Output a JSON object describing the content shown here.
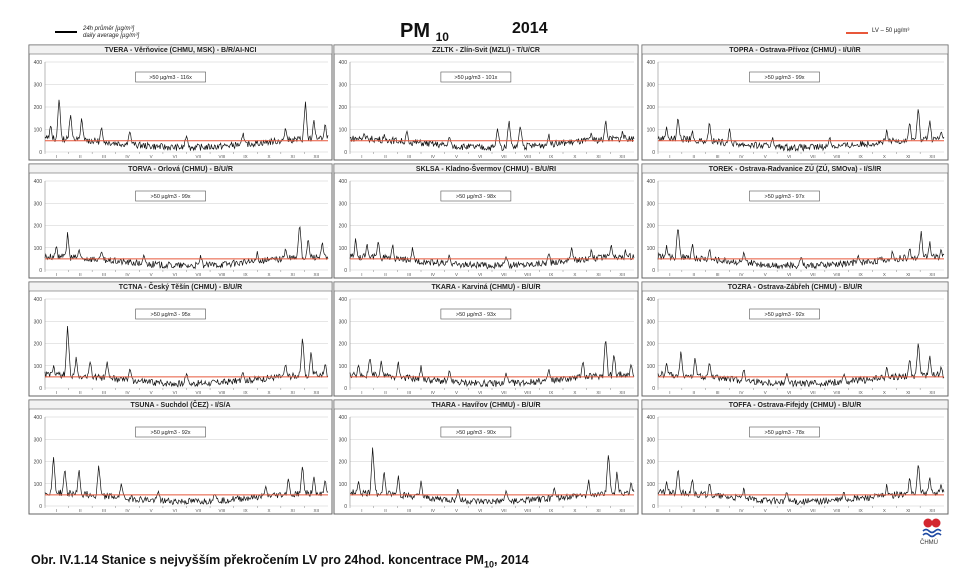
{
  "header": {
    "legend_left_line1": "24h průměr [µg/m³]",
    "legend_left_line2": "daily average [µg/m³]",
    "title_main": "PM",
    "title_sub": "10",
    "year": "2014",
    "legend_right": "LV – 50 µg/m³"
  },
  "caption": {
    "prefix": "Obr. IV.1.14  Stanice s nejvyšším překročením LV pro 24hod. koncentrace PM",
    "sub": "10",
    "suffix": ", 2014"
  },
  "logo": {
    "label": "ČHMÚ"
  },
  "colors": {
    "series": "#111111",
    "limit": "#e8573a",
    "frame": "#666666",
    "grid": "#cccccc"
  },
  "chart_data": [
    {
      "type": "line",
      "title": "TVERA - Věrňovice (CHMU, MSK) - B/R/AI-NCI",
      "annotation": ">50 µg/m3 - 116x",
      "ylim": [
        0,
        400
      ],
      "yticks": [
        "0",
        "100",
        "200",
        "300",
        "400"
      ],
      "xticks": [
        "I",
        "II",
        "III",
        "IV",
        "V",
        "VI",
        "VII",
        "VIII",
        "IX",
        "X",
        "XI",
        "XII"
      ],
      "limit": 50,
      "peaks": [
        [
          0.02,
          120
        ],
        [
          0.05,
          235
        ],
        [
          0.09,
          170
        ],
        [
          0.13,
          150
        ],
        [
          0.2,
          110
        ],
        [
          0.3,
          90
        ],
        [
          0.5,
          70
        ],
        [
          0.7,
          80
        ],
        [
          0.85,
          110
        ],
        [
          0.92,
          220
        ],
        [
          0.95,
          140
        ],
        [
          0.99,
          120
        ]
      ]
    },
    {
      "type": "line",
      "title": "ZZLTK - Zlín-Svit (MZLI) - T/U/CR",
      "annotation": ">50 µg/m3 - 101x",
      "ylim": [
        0,
        400
      ],
      "yticks": [
        "0",
        "100",
        "200",
        "300",
        "400"
      ],
      "xticks": [
        "I",
        "II",
        "III",
        "IV",
        "V",
        "VI",
        "VII",
        "VIII",
        "IX",
        "X",
        "XI",
        "XII"
      ],
      "limit": 50,
      "peaks": [
        [
          0.05,
          80
        ],
        [
          0.12,
          70
        ],
        [
          0.2,
          90
        ],
        [
          0.35,
          60
        ],
        [
          0.52,
          100
        ],
        [
          0.56,
          130
        ],
        [
          0.6,
          115
        ],
        [
          0.7,
          70
        ],
        [
          0.85,
          80
        ],
        [
          0.9,
          140
        ],
        [
          0.96,
          90
        ]
      ]
    },
    {
      "type": "line",
      "title": "TOPRA - Ostrava-Přívoz (CHMU) - I/U/IR",
      "annotation": ">50 µg/m3 - 99x",
      "ylim": [
        0,
        400
      ],
      "yticks": [
        "0",
        "100",
        "200",
        "300",
        "400"
      ],
      "xticks": [
        "I",
        "II",
        "III",
        "IV",
        "V",
        "VI",
        "VII",
        "VIII",
        "IX",
        "X",
        "XI",
        "XII"
      ],
      "limit": 50,
      "peaks": [
        [
          0.03,
          110
        ],
        [
          0.07,
          160
        ],
        [
          0.12,
          90
        ],
        [
          0.18,
          130
        ],
        [
          0.25,
          95
        ],
        [
          0.4,
          60
        ],
        [
          0.6,
          60
        ],
        [
          0.8,
          90
        ],
        [
          0.88,
          130
        ],
        [
          0.91,
          195
        ],
        [
          0.95,
          140
        ],
        [
          0.99,
          90
        ]
      ]
    },
    {
      "type": "line",
      "title": "TORVA - Orlová (CHMU) - B/U/R",
      "annotation": ">50 µg/m3 - 99x",
      "ylim": [
        0,
        400
      ],
      "yticks": [
        "0",
        "100",
        "200",
        "300",
        "400"
      ],
      "xticks": [
        "I",
        "II",
        "III",
        "IV",
        "V",
        "VI",
        "VII",
        "VIII",
        "IX",
        "X",
        "XI",
        "XII"
      ],
      "limit": 50,
      "peaks": [
        [
          0.04,
          110
        ],
        [
          0.08,
          160
        ],
        [
          0.12,
          90
        ],
        [
          0.2,
          80
        ],
        [
          0.35,
          60
        ],
        [
          0.55,
          55
        ],
        [
          0.75,
          70
        ],
        [
          0.85,
          95
        ],
        [
          0.9,
          210
        ],
        [
          0.93,
          140
        ],
        [
          0.98,
          120
        ]
      ]
    },
    {
      "type": "line",
      "title": "SKLSA - Kladno-Švermov (CHMU) - B/U/RI",
      "annotation": ">50 µg/m3 - 98x",
      "ylim": [
        0,
        400
      ],
      "yticks": [
        "0",
        "100",
        "200",
        "300",
        "400"
      ],
      "xticks": [
        "I",
        "II",
        "III",
        "IV",
        "V",
        "VI",
        "VII",
        "VIII",
        "IX",
        "X",
        "XI",
        "XII"
      ],
      "limit": 50,
      "peaks": [
        [
          0.02,
          140
        ],
        [
          0.06,
          120
        ],
        [
          0.1,
          130
        ],
        [
          0.15,
          110
        ],
        [
          0.22,
          90
        ],
        [
          0.35,
          60
        ],
        [
          0.55,
          50
        ],
        [
          0.7,
          70
        ],
        [
          0.78,
          100
        ],
        [
          0.85,
          90
        ],
        [
          0.92,
          110
        ],
        [
          0.97,
          80
        ]
      ]
    },
    {
      "type": "line",
      "title": "TOREK - Ostrava-Radvanice ZÚ (ZÚ, SMOva) - I/S/IR",
      "annotation": ">50 µg/m3 - 97x",
      "ylim": [
        0,
        400
      ],
      "yticks": [
        "0",
        "100",
        "200",
        "300",
        "400"
      ],
      "xticks": [
        "I",
        "II",
        "III",
        "IV",
        "V",
        "VI",
        "VII",
        "VIII",
        "IX",
        "X",
        "XI",
        "XII"
      ],
      "limit": 50,
      "peaks": [
        [
          0.03,
          110
        ],
        [
          0.07,
          200
        ],
        [
          0.12,
          110
        ],
        [
          0.18,
          90
        ],
        [
          0.3,
          70
        ],
        [
          0.5,
          55
        ],
        [
          0.7,
          60
        ],
        [
          0.82,
          80
        ],
        [
          0.88,
          100
        ],
        [
          0.92,
          170
        ],
        [
          0.95,
          120
        ],
        [
          0.99,
          90
        ]
      ]
    },
    {
      "type": "line",
      "title": "TCTNA - Český Těšín (CHMU) - B/U/R",
      "annotation": ">50 µg/m3 - 95x",
      "ylim": [
        0,
        400
      ],
      "yticks": [
        "0",
        "100",
        "200",
        "300",
        "400"
      ],
      "xticks": [
        "I",
        "II",
        "III",
        "IV",
        "V",
        "VI",
        "VII",
        "VIII",
        "IX",
        "X",
        "XI",
        "XII"
      ],
      "limit": 50,
      "peaks": [
        [
          0.03,
          100
        ],
        [
          0.08,
          280
        ],
        [
          0.11,
          130
        ],
        [
          0.16,
          120
        ],
        [
          0.22,
          110
        ],
        [
          0.3,
          80
        ],
        [
          0.5,
          60
        ],
        [
          0.7,
          70
        ],
        [
          0.85,
          110
        ],
        [
          0.91,
          230
        ],
        [
          0.94,
          160
        ],
        [
          0.99,
          110
        ]
      ]
    },
    {
      "type": "line",
      "title": "TKARA - Karviná (CHMU) - B/U/R",
      "annotation": ">50 µg/m3 - 93x",
      "ylim": [
        0,
        400
      ],
      "yticks": [
        "0",
        "100",
        "200",
        "300",
        "400"
      ],
      "xticks": [
        "I",
        "II",
        "III",
        "IV",
        "V",
        "VI",
        "VII",
        "VIII",
        "IX",
        "X",
        "XI",
        "XII"
      ],
      "limit": 50,
      "peaks": [
        [
          0.03,
          100
        ],
        [
          0.07,
          140
        ],
        [
          0.11,
          120
        ],
        [
          0.17,
          110
        ],
        [
          0.25,
          90
        ],
        [
          0.35,
          70
        ],
        [
          0.55,
          60
        ],
        [
          0.7,
          80
        ],
        [
          0.82,
          120
        ],
        [
          0.9,
          230
        ],
        [
          0.93,
          150
        ],
        [
          0.99,
          110
        ]
      ]
    },
    {
      "type": "line",
      "title": "TOZRA - Ostrava-Zábřeh (CHMU) - B/U/R",
      "annotation": ">50 µg/m3 - 92x",
      "ylim": [
        0,
        400
      ],
      "yticks": [
        "0",
        "100",
        "200",
        "300",
        "400"
      ],
      "xticks": [
        "I",
        "II",
        "III",
        "IV",
        "V",
        "VI",
        "VII",
        "VIII",
        "IX",
        "X",
        "XI",
        "XII"
      ],
      "limit": 50,
      "peaks": [
        [
          0.03,
          110
        ],
        [
          0.08,
          160
        ],
        [
          0.13,
          130
        ],
        [
          0.18,
          110
        ],
        [
          0.3,
          80
        ],
        [
          0.45,
          60
        ],
        [
          0.65,
          60
        ],
        [
          0.8,
          90
        ],
        [
          0.88,
          130
        ],
        [
          0.91,
          200
        ],
        [
          0.95,
          140
        ],
        [
          0.99,
          100
        ]
      ]
    },
    {
      "type": "line",
      "title": "TSUNA - Suchdol (ČEZ) - I/S/A",
      "annotation": ">50 µg/m3 - 92x",
      "ylim": [
        0,
        400
      ],
      "yticks": [
        "0",
        "100",
        "200",
        "300",
        "400"
      ],
      "xticks": [
        "I",
        "II",
        "III",
        "IV",
        "V",
        "VI",
        "VII",
        "VIII",
        "IX",
        "X",
        "XI",
        "XII"
      ],
      "limit": 50,
      "peaks": [
        [
          0.03,
          220
        ],
        [
          0.07,
          170
        ],
        [
          0.12,
          160
        ],
        [
          0.19,
          180
        ],
        [
          0.27,
          100
        ],
        [
          0.4,
          60
        ],
        [
          0.6,
          55
        ],
        [
          0.78,
          80
        ],
        [
          0.86,
          120
        ],
        [
          0.91,
          180
        ],
        [
          0.95,
          130
        ],
        [
          0.99,
          110
        ]
      ]
    },
    {
      "type": "line",
      "title": "THARA - Havířov (CHMU) - B/U/R",
      "annotation": ">50 µg/m3 - 90x",
      "ylim": [
        0,
        400
      ],
      "yticks": [
        "0",
        "100",
        "200",
        "300",
        "400"
      ],
      "xticks": [
        "I",
        "II",
        "III",
        "IV",
        "V",
        "VI",
        "VII",
        "VIII",
        "IX",
        "X",
        "XI",
        "XII"
      ],
      "limit": 50,
      "peaks": [
        [
          0.03,
          110
        ],
        [
          0.08,
          260
        ],
        [
          0.12,
          150
        ],
        [
          0.17,
          130
        ],
        [
          0.25,
          100
        ],
        [
          0.38,
          70
        ],
        [
          0.55,
          60
        ],
        [
          0.72,
          80
        ],
        [
          0.84,
          110
        ],
        [
          0.91,
          240
        ],
        [
          0.94,
          150
        ],
        [
          0.99,
          110
        ]
      ]
    },
    {
      "type": "line",
      "title": "TOFFA - Ostrava-Fifejdy (CHMU) - B/U/R",
      "annotation": ">50 µg/m3 - 78x",
      "ylim": [
        0,
        400
      ],
      "yticks": [
        "0",
        "100",
        "200",
        "300",
        "400"
      ],
      "xticks": [
        "I",
        "II",
        "III",
        "IV",
        "V",
        "VI",
        "VII",
        "VIII",
        "IX",
        "X",
        "XI",
        "XII"
      ],
      "limit": 50,
      "peaks": [
        [
          0.03,
          110
        ],
        [
          0.07,
          170
        ],
        [
          0.12,
          120
        ],
        [
          0.18,
          100
        ],
        [
          0.3,
          70
        ],
        [
          0.45,
          55
        ],
        [
          0.65,
          55
        ],
        [
          0.8,
          90
        ],
        [
          0.88,
          120
        ],
        [
          0.91,
          190
        ],
        [
          0.95,
          130
        ],
        [
          0.99,
          100
        ]
      ]
    }
  ]
}
